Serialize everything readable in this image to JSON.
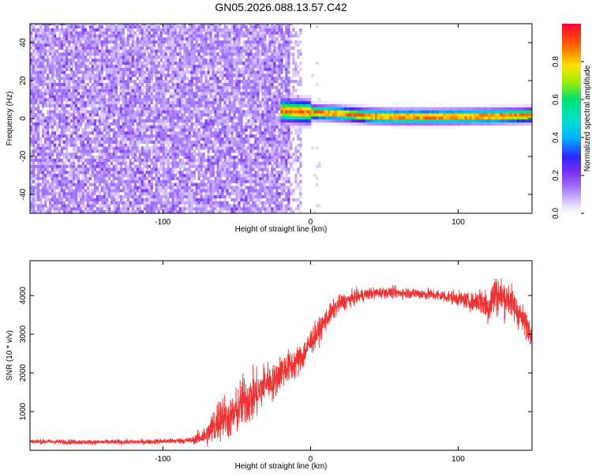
{
  "title": "GN05.2026.088.13.57.C42",
  "chart_data": [
    {
      "type": "heatmap",
      "xlabel": "Height of straight line (km)",
      "ylabel": "Frequency (Hz)",
      "xlim": [
        -190,
        150
      ],
      "ylim": [
        -50,
        50
      ],
      "xticks": [
        -100,
        0,
        100
      ],
      "yticks": [
        -40,
        -20,
        0,
        20,
        40
      ],
      "grid": false,
      "colorbar": {
        "label": "Normalized spectral amplitude",
        "range": [
          0.0,
          1.0
        ],
        "ticks": [
          0.0,
          0.2,
          0.4,
          0.6,
          0.8
        ],
        "colormap": [
          "#ffffff",
          "#d9c9ff",
          "#7a2cf0",
          "#2b2bff",
          "#00c8ff",
          "#00e070",
          "#ffe000",
          "#ff6a00",
          "#ff0030"
        ]
      },
      "structure": {
        "noise_region_x": [
          -190,
          -15
        ],
        "noise_amplitude": [
          0.05,
          0.15
        ],
        "signal_track": {
          "x": [
            -22,
            -10,
            0,
            10,
            20,
            30,
            40,
            60,
            80,
            100,
            120,
            140,
            150
          ],
          "frequency_hz": [
            3.5,
            3.0,
            2.5,
            2.2,
            1.8,
            1.2,
            0.5,
            0.2,
            0.2,
            0.3,
            0.5,
            0.8,
            1.0
          ],
          "peak_amplitude": 0.95
        }
      }
    },
    {
      "type": "line",
      "xlabel": "Height of straight line (km)",
      "ylabel": "SNR (10 * v/v)",
      "xlim": [
        -190,
        150
      ],
      "ylim": [
        0,
        4900
      ],
      "xticks": [
        -100,
        0,
        100
      ],
      "yticks": [
        1000,
        2000,
        3000,
        4000
      ],
      "grid": false,
      "series": [
        {
          "color": "#ee3333",
          "x": [
            -190,
            -150,
            -110,
            -80,
            -70,
            -65,
            -60,
            -55,
            -50,
            -45,
            -40,
            -35,
            -30,
            -25,
            -20,
            -15,
            -10,
            -5,
            0,
            5,
            10,
            15,
            20,
            30,
            40,
            50,
            60,
            70,
            80,
            90,
            100,
            110,
            115,
            120,
            125,
            130,
            135,
            140,
            145,
            150
          ],
          "y": [
            230,
            210,
            220,
            260,
            400,
            650,
            900,
            800,
            1000,
            1300,
            1350,
            1500,
            1800,
            1750,
            2050,
            2150,
            2250,
            2450,
            2800,
            3050,
            3350,
            3600,
            3800,
            3950,
            4050,
            4080,
            4070,
            4060,
            4030,
            3990,
            3920,
            3820,
            3900,
            3700,
            4050,
            3950,
            3900,
            3600,
            3300,
            3050
          ],
          "noise_amplitude": [
            60,
            60,
            60,
            80,
            300,
            500,
            600,
            500,
            600,
            700,
            650,
            600,
            500,
            450,
            450,
            420,
            400,
            380,
            350,
            300,
            280,
            250,
            220,
            180,
            150,
            140,
            140,
            140,
            150,
            160,
            180,
            220,
            350,
            500,
            550,
            500,
            450,
            400,
            350,
            300
          ]
        }
      ]
    }
  ]
}
